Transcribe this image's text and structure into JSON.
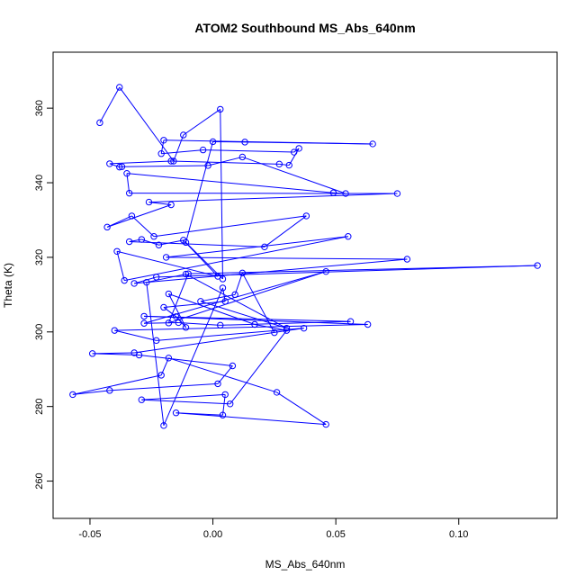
{
  "chart_data": {
    "type": "line",
    "markers": true,
    "title": "ATOM2 Southbound MS_Abs_640nm",
    "xlabel": "MS_Abs_640nm",
    "ylabel": "Theta (K)",
    "xlim": [
      -0.065,
      0.14
    ],
    "ylim": [
      250,
      375
    ],
    "xticks": [
      -0.05,
      0.0,
      0.05,
      0.1
    ],
    "xtick_labels": [
      "-0.05",
      "0.00",
      "0.05",
      "0.10"
    ],
    "yticks": [
      260,
      280,
      300,
      320,
      340,
      360
    ],
    "yticks_labels": [
      "260",
      "280",
      "300",
      "320",
      "340",
      "360"
    ],
    "grid": false,
    "color": "#0000ff",
    "series": [
      {
        "x": [
          -0.046,
          -0.038,
          -0.016,
          -0.012,
          0.003,
          0.004,
          -0.011,
          0.0,
          0.013,
          0.065,
          -0.02,
          -0.021,
          -0.004,
          0.033,
          0.035,
          0.031,
          0.027,
          -0.017,
          -0.042,
          -0.038,
          -0.037,
          -0.002,
          0.012,
          0.054,
          0.049,
          -0.035,
          -0.034,
          0.075,
          -0.026,
          -0.017,
          -0.043,
          -0.033,
          -0.024,
          0.038,
          0.021,
          -0.034,
          -0.029,
          -0.022,
          -0.012,
          0.002,
          -0.039,
          -0.036,
          0.055,
          -0.019,
          0.079,
          -0.032,
          -0.023,
          0.132,
          -0.01,
          -0.018,
          0.046,
          -0.028,
          -0.014,
          0.003,
          0.056,
          -0.028,
          0.063,
          -0.04,
          -0.023,
          0.037,
          -0.032,
          -0.049,
          -0.03,
          0.008,
          0.002,
          -0.042,
          -0.057,
          -0.021,
          -0.018,
          0.026,
          0.046,
          -0.015,
          0.004,
          0.005,
          -0.029,
          0.007,
          0.03,
          0.017,
          -0.018,
          -0.011,
          -0.015,
          -0.02,
          0.005,
          0.004,
          -0.02,
          -0.027,
          -0.011,
          0.03,
          -0.005,
          0.009,
          0.012,
          0.025
        ],
        "y": [
          356.1,
          365.6,
          345.8,
          352.8,
          359.7,
          314.2,
          324.0,
          351.0,
          350.9,
          350.4,
          351.4,
          347.8,
          348.8,
          348.2,
          349.2,
          344.7,
          345.0,
          345.8,
          345.1,
          344.2,
          344.3,
          344.6,
          346.9,
          337.1,
          337.3,
          342.5,
          337.2,
          337.1,
          334.8,
          334.1,
          328.1,
          331.1,
          325.6,
          331.1,
          322.8,
          324.2,
          324.8,
          323.3,
          324.6,
          314.9,
          321.6,
          313.8,
          325.6,
          320.0,
          319.5,
          313.0,
          314.7,
          317.8,
          315.6,
          302.4,
          316.2,
          302.3,
          302.5,
          301.8,
          302.8,
          304.2,
          302.0,
          300.4,
          297.7,
          301.0,
          294.4,
          294.2,
          293.8,
          290.9,
          286.1,
          284.3,
          283.2,
          288.4,
          293.0,
          283.8,
          275.2,
          278.3,
          277.7,
          283.2,
          281.8,
          280.7,
          300.4,
          302.0,
          310.2,
          301.2,
          304.1,
          306.6,
          308.2,
          311.8,
          274.9,
          313.3,
          315.5,
          301.0,
          308.2,
          310.0,
          315.8,
          299.8
        ]
      }
    ]
  }
}
